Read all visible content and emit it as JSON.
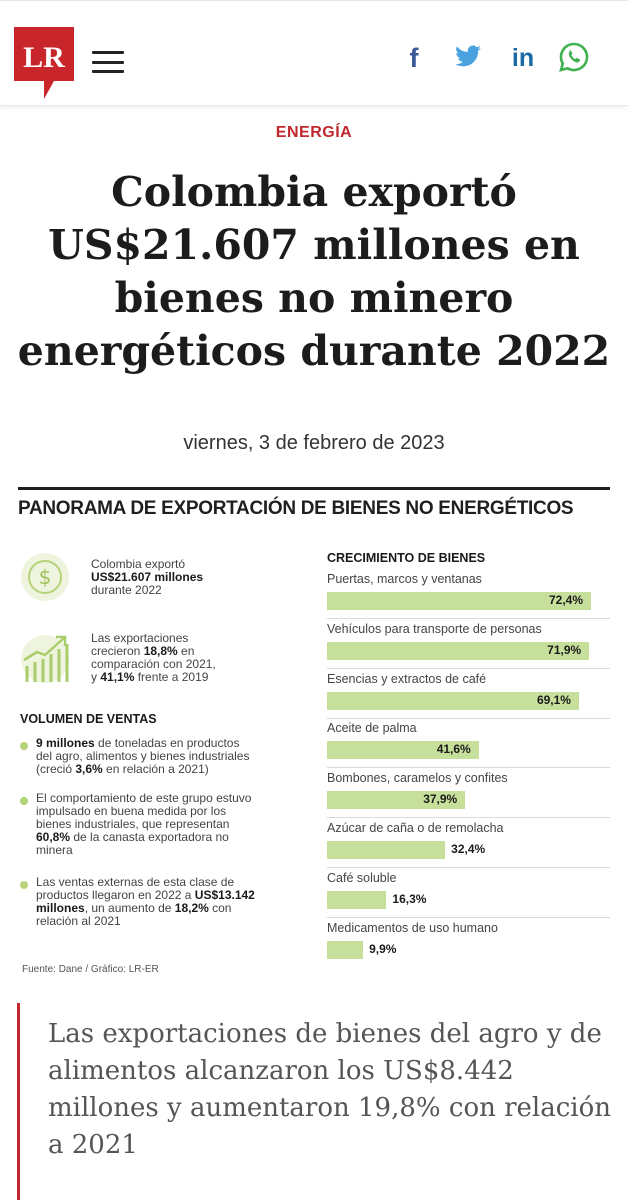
{
  "header": {
    "logo_text": "LR",
    "menu_icon": "hamburger-menu-icon",
    "social": [
      {
        "name": "facebook",
        "glyph": "f",
        "color": "#3b5998"
      },
      {
        "name": "twitter",
        "glyph": "twitter-bird",
        "color": "#4aa3df"
      },
      {
        "name": "linkedin",
        "glyph": "in",
        "color": "#1b6aa5"
      },
      {
        "name": "whatsapp",
        "glyph": "whatsapp",
        "color": "#3fb04f"
      }
    ],
    "brand_color": "#c9262c"
  },
  "article": {
    "section": "ENERGÍA",
    "headline": "Colombia exportó US$21.607 millones en bienes no minero energéticos durante 2022",
    "date": "viernes, 3 de febrero de 2023"
  },
  "infographic": {
    "title": "PANORAMA DE EXPORTACIÓN DE BIENES NO ENERGÉTICOS",
    "stat1": {
      "pre": "Colombia exportó",
      "bold": "US$21.607 millones",
      "post": "durante 2022"
    },
    "stat2": {
      "l1": "Las exportaciones",
      "l2_pre": "crecieron ",
      "l2_bold": "18,8%",
      "l2_post": " en",
      "l3": "comparación con 2021,",
      "l4_pre": "y ",
      "l4_bold": "41,1%",
      "l4_post": " frente a 2019"
    },
    "volume_title": "VOLUMEN DE VENTAS",
    "bullets": [
      {
        "b1": "9 millones",
        "t1": " de toneladas en productos",
        "t2": "del agro, alimentos y bienes industriales",
        "t3": "(creció ",
        "b3": "3,6%",
        "t3b": " en relación a 2021)"
      },
      {
        "t1": "El comportamiento de este grupo estuvo",
        "t2": "impulsado en buena medida por los",
        "t3": "bienes industriales, que representan",
        "b4": "60,8%",
        "t4": " de la canasta exportadora no",
        "t5": "minera"
      },
      {
        "t1": "Las ventas externas de esta clase de",
        "t2": "productos llegaron en 2022 a ",
        "b2": "US$13.142",
        "b3": "millones",
        "t3": ", un aumento de ",
        "b3b": "18,2%",
        "t3b": " con",
        "t4": "relación al 2021"
      }
    ],
    "source": "Fuente: Dane / Gráfico: LR-ER",
    "growth_title": "CRECIMIENTO DE BIENES",
    "bar_color": "#c6df9b",
    "accent_color": "#b5d37a"
  },
  "chart_data": {
    "type": "bar",
    "title": "CRECIMIENTO DE BIENES",
    "categories": [
      "Puertas, marcos y ventanas",
      "Vehículos para transporte de personas",
      "Esencias y extractos de café",
      "Aceite de palma",
      "Bombones, caramelos y confites",
      "Azúcar de caña o de remolacha",
      "Café soluble",
      "Medicamentos de uso humano"
    ],
    "values": [
      72.4,
      71.9,
      69.1,
      41.6,
      37.9,
      32.4,
      16.3,
      9.9
    ],
    "value_labels": [
      "72,4%",
      "71,9%",
      "69,1%",
      "41,6%",
      "37,9%",
      "32,4%",
      "16,3%",
      "9,9%"
    ],
    "xlabel": "",
    "ylabel": "",
    "orientation": "horizontal"
  },
  "pull_quote": "Las exportaciones de bienes del agro y de alimentos alcanzaron los US$8.442 millones y aumentaron 19,8% con relación a 2021"
}
